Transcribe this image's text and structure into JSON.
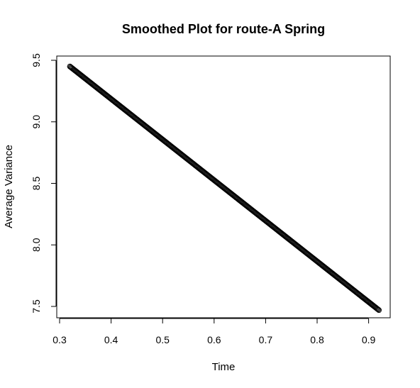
{
  "chart_data": {
    "type": "scatter",
    "title": "Smoothed Plot for route-A Spring",
    "xlabel": "Time",
    "ylabel": "Average Variance",
    "xlim": [
      0.32,
      0.92
    ],
    "ylim": [
      7.47,
      9.45
    ],
    "x_ticks": [
      "0.3",
      "0.4",
      "0.5",
      "0.6",
      "0.7",
      "0.8",
      "0.9"
    ],
    "y_ticks": [
      "7.5",
      "8.0",
      "8.5",
      "9.0",
      "9.5"
    ],
    "marker": "open-circle",
    "grid": false,
    "legend": "none",
    "series": [
      {
        "x_start": 0.32,
        "x_end": 0.92,
        "y_start": 9.45,
        "y_end": 7.47,
        "points": 500
      }
    ]
  }
}
